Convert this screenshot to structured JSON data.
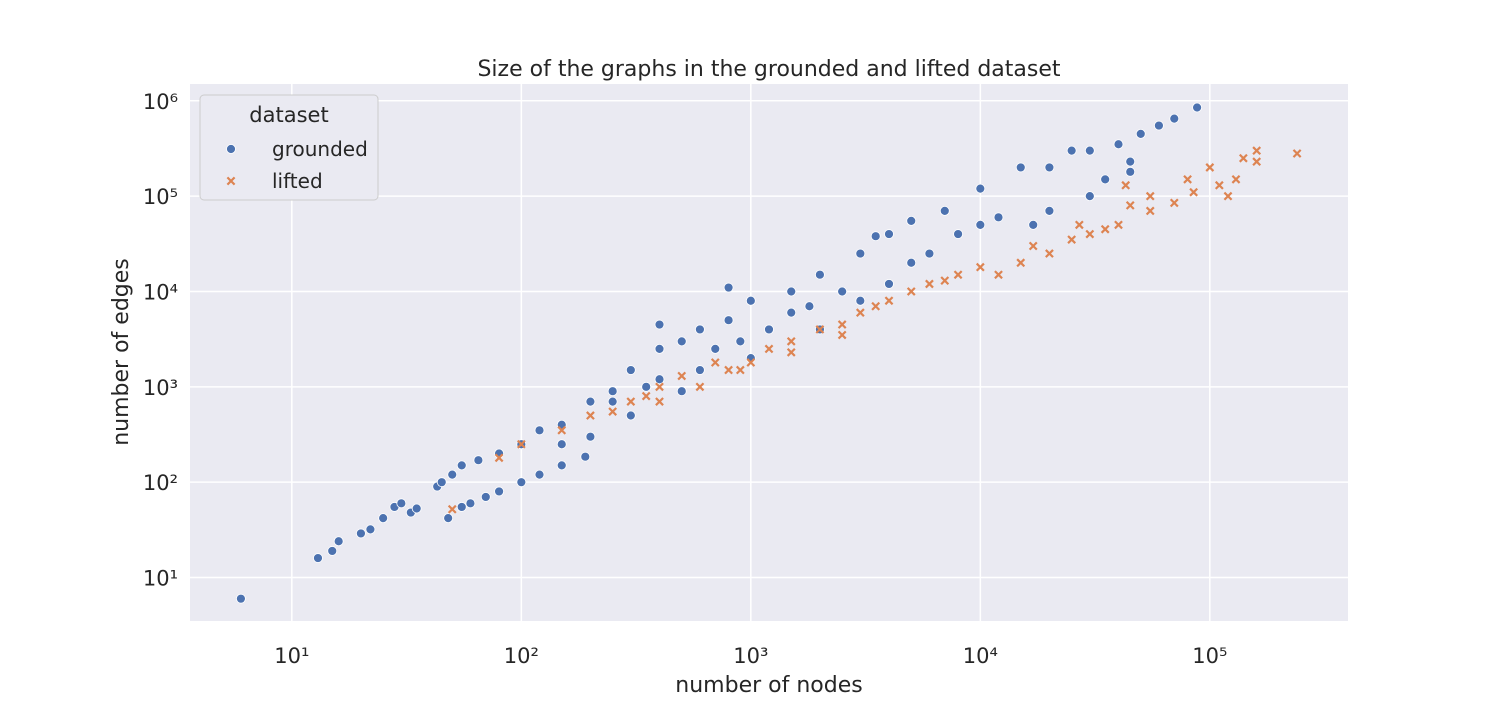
{
  "chart_data": {
    "type": "scatter",
    "title": "Size of the graphs in the grounded and lifted dataset",
    "x_label": "number of nodes",
    "y_label": "number of edges",
    "xscale": "log",
    "yscale": "log",
    "grid": true,
    "xlim": [
      3.6,
      400000
    ],
    "ylim": [
      3.5,
      1500000
    ],
    "xticks": [
      {
        "value": 10,
        "label": "10¹"
      },
      {
        "value": 100,
        "label": "10²"
      },
      {
        "value": 1000,
        "label": "10³"
      },
      {
        "value": 10000,
        "label": "10⁴"
      },
      {
        "value": 100000,
        "label": "10⁵"
      }
    ],
    "yticks": [
      {
        "value": 10,
        "label": "10¹"
      },
      {
        "value": 100,
        "label": "10²"
      },
      {
        "value": 1000,
        "label": "10³"
      },
      {
        "value": 10000,
        "label": "10⁴"
      },
      {
        "value": 100000,
        "label": "10⁵"
      },
      {
        "value": 1000000,
        "label": "10⁶"
      }
    ],
    "legend_title": "dataset",
    "legend_position": "upper left",
    "series": [
      {
        "name": "grounded",
        "color": "#4c72b0",
        "marker": "circle",
        "x": [
          6,
          13,
          15,
          16,
          20,
          22,
          25,
          28,
          30,
          33,
          35,
          43,
          45,
          48,
          50,
          55,
          60,
          70,
          80,
          100,
          120,
          150,
          190,
          55,
          65,
          80,
          100,
          120,
          150,
          200,
          250,
          300,
          400,
          500,
          600,
          800,
          1000,
          800,
          1500,
          2000,
          3000,
          4000,
          5000,
          7000,
          10000,
          15000,
          20000,
          25000,
          30000,
          40000,
          50000,
          60000,
          70000,
          88000,
          45000,
          30000,
          20000,
          10000,
          5000,
          3000,
          2000,
          1000,
          500,
          300,
          200,
          150,
          400,
          700,
          1200,
          1500,
          2500,
          6000,
          8000,
          12000,
          17000,
          35000,
          45000,
          400,
          250,
          350,
          600,
          900,
          1800,
          4000,
          3500
        ],
        "values": [
          6,
          16,
          19,
          24,
          29,
          32,
          42,
          55,
          60,
          48,
          53,
          90,
          100,
          42,
          120,
          55,
          60,
          70,
          80,
          100,
          120,
          150,
          185,
          150,
          170,
          200,
          250,
          350,
          400,
          700,
          900,
          1500,
          2500,
          3000,
          4000,
          5000,
          8000,
          11000,
          10000,
          15000,
          25000,
          40000,
          55000,
          70000,
          120000,
          200000,
          200000,
          300000,
          300000,
          350000,
          450000,
          550000,
          650000,
          850000,
          230000,
          100000,
          70000,
          50000,
          20000,
          8000,
          4000,
          2000,
          900,
          500,
          300,
          250,
          1200,
          2500,
          4000,
          6000,
          10000,
          25000,
          40000,
          60000,
          50000,
          150000,
          180000,
          4500,
          700,
          1000,
          1500,
          3000,
          7000,
          12000,
          38000
        ]
      },
      {
        "name": "lifted",
        "color": "#dd8452",
        "marker": "x",
        "x": [
          50,
          80,
          100,
          150,
          200,
          300,
          400,
          500,
          700,
          900,
          1000,
          1200,
          1500,
          2000,
          3000,
          4000,
          5000,
          6000,
          8000,
          10000,
          12000,
          15000,
          20000,
          25000,
          30000,
          35000,
          40000,
          45000,
          55000,
          55000,
          70000,
          80000,
          100000,
          110000,
          130000,
          140000,
          160000,
          160000,
          240000,
          600,
          800,
          250,
          350,
          2500,
          3500,
          7000,
          27000,
          17000,
          43000,
          120000,
          85000,
          400,
          1500,
          2500
        ],
        "values": [
          52,
          180,
          250,
          350,
          500,
          700,
          1000,
          1300,
          1800,
          1500,
          1800,
          2500,
          3000,
          4000,
          6000,
          8000,
          10000,
          12000,
          15000,
          18000,
          15000,
          20000,
          25000,
          35000,
          40000,
          45000,
          50000,
          80000,
          70000,
          100000,
          85000,
          150000,
          200000,
          130000,
          150000,
          250000,
          300000,
          230000,
          280000,
          1000,
          1500,
          550,
          800,
          4500,
          7000,
          13000,
          50000,
          30000,
          130000,
          100000,
          110000,
          700,
          2300,
          3500
        ]
      }
    ]
  }
}
